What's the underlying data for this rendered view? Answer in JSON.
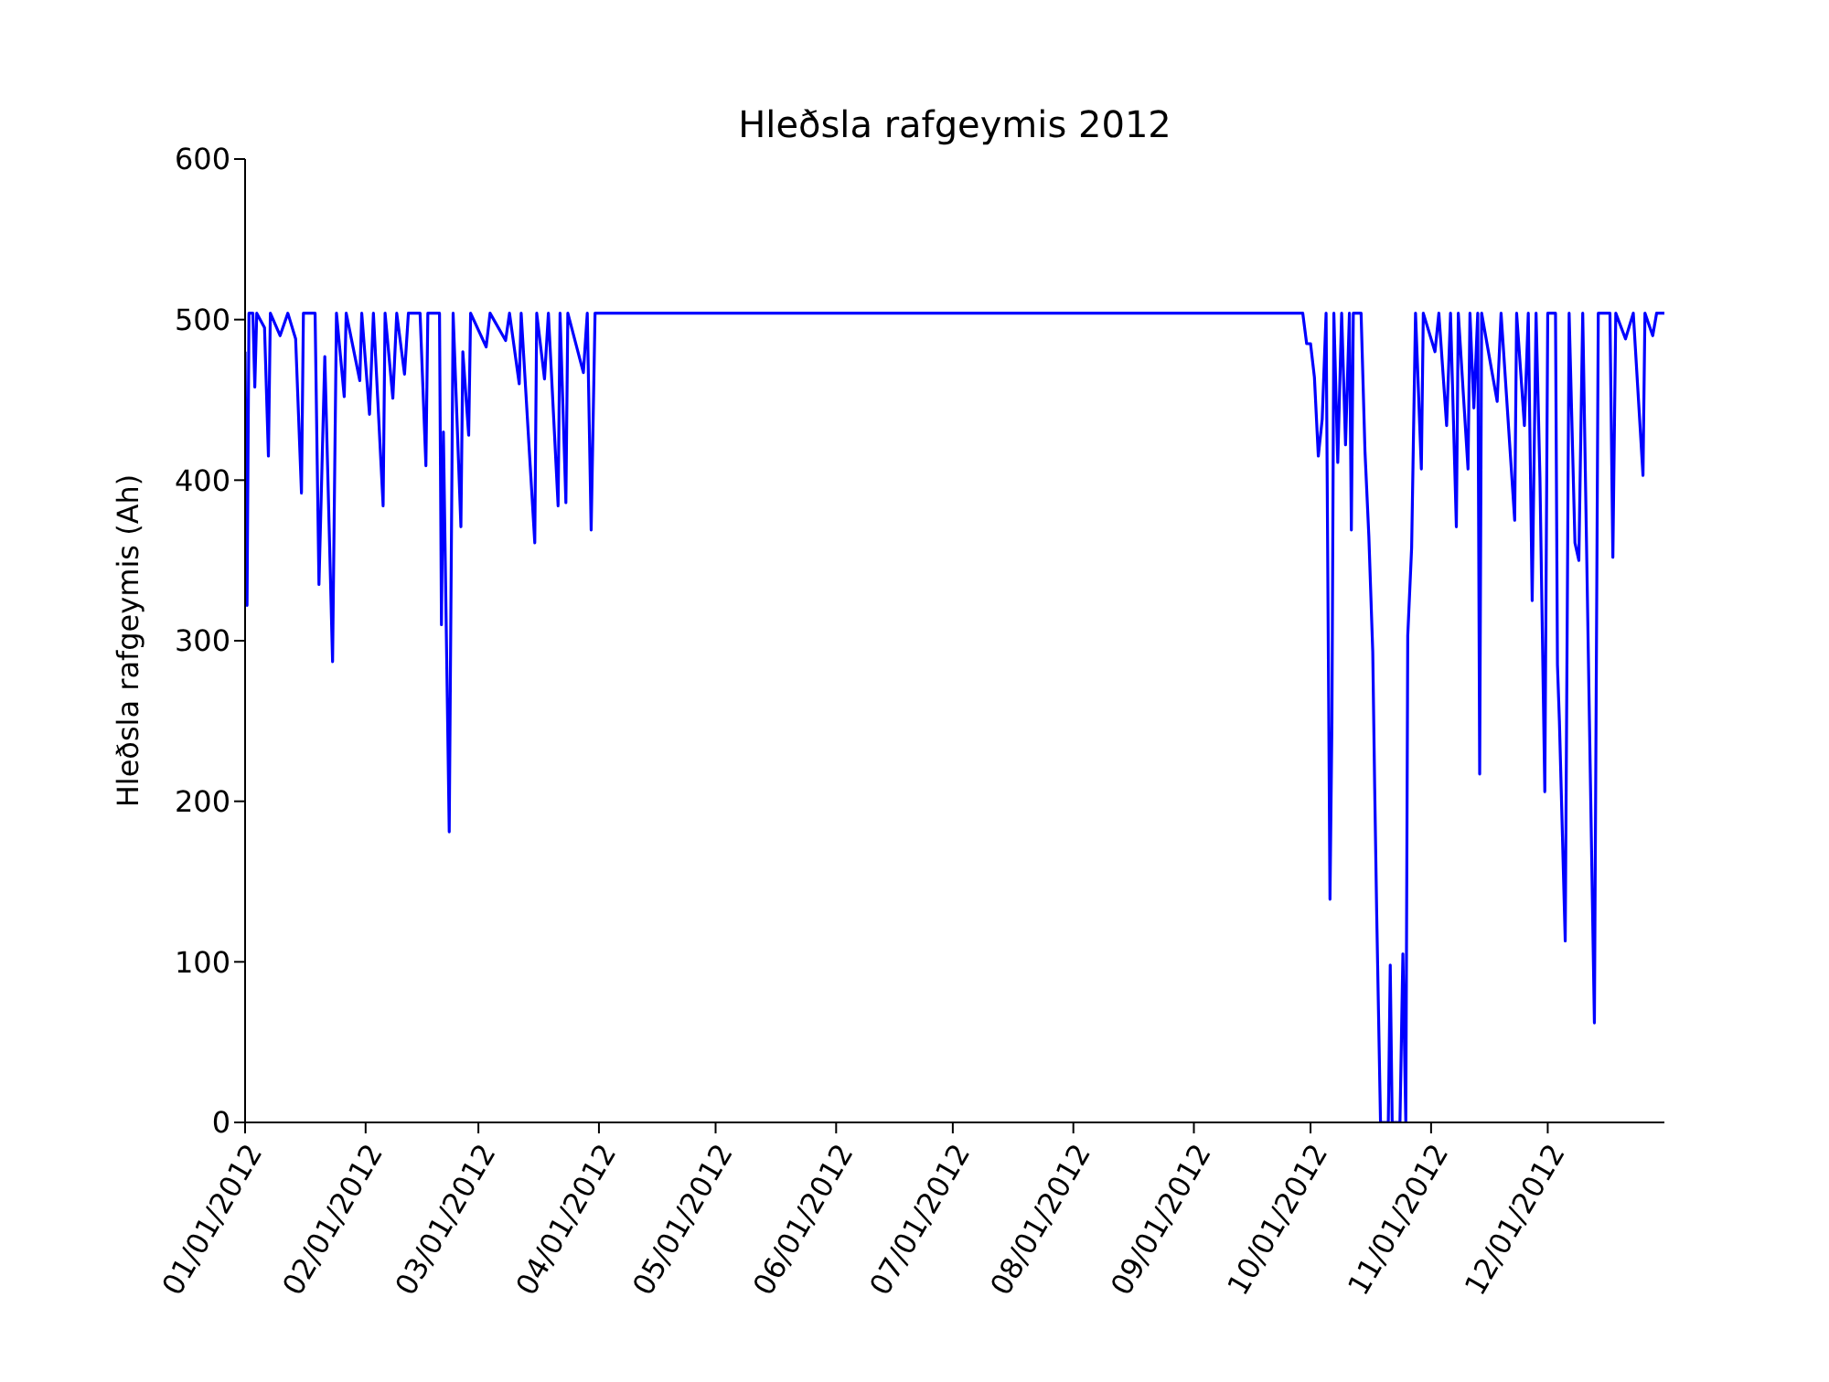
{
  "chart_data": {
    "type": "line",
    "title": "Hleðsla rafgeymis 2012",
    "ylabel": "Hleðsla rafgeymis (Ah)",
    "x": [
      "2012-01-01T00:00",
      "2012-01-01T12:00",
      "2012-01-02",
      "2012-01-03",
      "2012-01-03T12:00",
      "2012-01-04",
      "2012-01-06",
      "2012-01-07",
      "2012-01-07T12:00",
      "2012-01-10",
      "2012-01-12",
      "2012-01-14",
      "2012-01-15T12:00",
      "2012-01-16",
      "2012-01-19",
      "2012-01-20",
      "2012-01-21T12:00",
      "2012-01-23T12:00",
      "2012-01-24T12:00",
      "2012-01-26T12:00",
      "2012-01-27",
      "2012-01-30T12:00",
      "2012-01-31",
      "2012-02-02",
      "2012-02-03",
      "2012-02-05T12:00",
      "2012-02-06",
      "2012-02-08",
      "2012-02-09",
      "2012-02-11",
      "2012-02-12",
      "2012-02-15",
      "2012-02-16T12:00",
      "2012-02-17",
      "2012-02-20",
      "2012-02-20T12:00",
      "2012-02-21",
      "2012-02-22T12:00",
      "2012-02-23T12:00",
      "2012-02-25T12:00",
      "2012-02-26",
      "2012-02-27T12:00",
      "2012-02-28",
      "2012-03-03",
      "2012-03-04",
      "2012-03-08",
      "2012-03-09",
      "2012-03-11T12:00",
      "2012-03-12",
      "2012-03-15T12:00",
      "2012-03-16",
      "2012-03-18",
      "2012-03-19",
      "2012-03-21T12:00",
      "2012-03-22",
      "2012-03-23T12:00",
      "2012-03-24",
      "2012-03-28",
      "2012-03-29",
      "2012-03-30",
      "2012-03-31",
      "2012-09-29",
      "2012-09-30",
      "2012-10-01",
      "2012-10-02",
      "2012-10-03",
      "2012-10-04",
      "2012-10-05",
      "2012-10-06",
      "2012-10-06T12:00",
      "2012-10-07",
      "2012-10-08",
      "2012-10-09",
      "2012-10-10",
      "2012-10-11",
      "2012-10-11T12:00",
      "2012-10-12",
      "2012-10-14",
      "2012-10-15",
      "2012-10-16",
      "2012-10-17",
      "2012-10-17T12:00",
      "2012-10-18",
      "2012-10-19",
      "2012-10-21",
      "2012-10-21T12:00",
      "2012-10-22",
      "2012-10-24",
      "2012-10-24T18:00",
      "2012-10-25T12:00",
      "2012-10-26",
      "2012-10-27",
      "2012-10-28",
      "2012-10-29T12:00",
      "2012-10-30",
      "2012-11-02",
      "2012-11-03",
      "2012-11-05",
      "2012-11-06",
      "2012-11-07T12:00",
      "2012-11-08",
      "2012-11-10T12:00",
      "2012-11-11",
      "2012-11-12",
      "2012-11-13",
      "2012-11-13T12:00",
      "2012-11-14",
      "2012-11-18",
      "2012-11-19",
      "2012-11-22T12:00",
      "2012-11-23",
      "2012-11-25",
      "2012-11-26",
      "2012-11-27",
      "2012-11-28",
      "2012-11-29",
      "2012-11-30T06:00",
      "2012-12-01",
      "2012-12-03",
      "2012-12-03T12:00",
      "2012-12-04",
      "2012-12-05T12:00",
      "2012-12-06T12:00",
      "2012-12-08",
      "2012-12-09",
      "2012-12-10",
      "2012-12-13",
      "2012-12-14",
      "2012-12-17",
      "2012-12-17T18:00",
      "2012-12-18T12:00",
      "2012-12-21",
      "2012-12-23",
      "2012-12-25T12:00",
      "2012-12-26",
      "2012-12-28",
      "2012-12-29",
      "2012-12-31"
    ],
    "series": [
      {
        "color": "#0000ff",
        "values": [
          480,
          322,
          504,
          504,
          458,
          504,
          495,
          415,
          504,
          490,
          504,
          488,
          392,
          504,
          504,
          335,
          477,
          287,
          504,
          452,
          504,
          462,
          504,
          441,
          504,
          384,
          504,
          451,
          504,
          466,
          504,
          504,
          409,
          504,
          504,
          310,
          430,
          181,
          504,
          371,
          480,
          428,
          504,
          483,
          504,
          487,
          504,
          460,
          504,
          361,
          504,
          463,
          504,
          384,
          504,
          386,
          504,
          467,
          504,
          369,
          504,
          504,
          485,
          485,
          464,
          415,
          438,
          504,
          139,
          249,
          504,
          411,
          504,
          422,
          504,
          369,
          504,
          504,
          418,
          365,
          293,
          208,
          132,
          0,
          0,
          98,
          0,
          0,
          105,
          0,
          303,
          358,
          504,
          407,
          504,
          480,
          504,
          434,
          504,
          371,
          504,
          407,
          504,
          445,
          504,
          217,
          504,
          449,
          504,
          375,
          504,
          434,
          504,
          325,
          504,
          401,
          206,
          504,
          504,
          285,
          250,
          113,
          504,
          361,
          350,
          504,
          62,
          504,
          504,
          352,
          504,
          488,
          504,
          403,
          504,
          490,
          504,
          504
        ]
      }
    ],
    "xlim": [
      "2012-01-01",
      "2012-12-31"
    ],
    "xticks": [
      {
        "value": "2012-01-01",
        "label": "01/01/2012"
      },
      {
        "value": "2012-02-01",
        "label": "02/01/2012"
      },
      {
        "value": "2012-03-01",
        "label": "03/01/2012"
      },
      {
        "value": "2012-04-01",
        "label": "04/01/2012"
      },
      {
        "value": "2012-05-01",
        "label": "05/01/2012"
      },
      {
        "value": "2012-06-01",
        "label": "06/01/2012"
      },
      {
        "value": "2012-07-01",
        "label": "07/01/2012"
      },
      {
        "value": "2012-08-01",
        "label": "08/01/2012"
      },
      {
        "value": "2012-09-01",
        "label": "09/01/2012"
      },
      {
        "value": "2012-10-01",
        "label": "10/01/2012"
      },
      {
        "value": "2012-11-01",
        "label": "11/01/2012"
      },
      {
        "value": "2012-12-01",
        "label": "12/01/2012"
      }
    ],
    "ylim": [
      0,
      600
    ],
    "yticks": [
      0,
      100,
      200,
      300,
      400,
      500,
      600
    ],
    "marker": "none",
    "line_style": "solid"
  }
}
